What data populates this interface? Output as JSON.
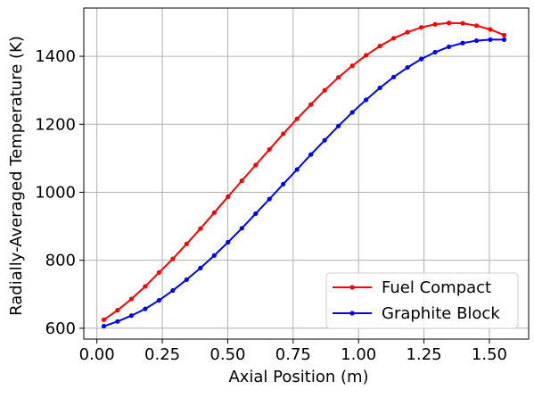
{
  "chart_data": {
    "type": "line",
    "title": "",
    "xlabel": "Axial Position (m)",
    "ylabel": "Radially-Averaged Temperature (K)",
    "xlim": [
      -0.05,
      1.65
    ],
    "ylim": [
      568,
      1542
    ],
    "xticks": [
      0.0,
      0.25,
      0.5,
      0.75,
      1.0,
      1.25,
      1.5
    ],
    "xtick_labels": [
      "0.00",
      "0.25",
      "0.50",
      "0.75",
      "1.00",
      "1.25",
      "1.50"
    ],
    "yticks": [
      600,
      800,
      1000,
      1200,
      1400
    ],
    "ytick_labels": [
      "600",
      "800",
      "1000",
      "1200",
      "1400"
    ],
    "grid": true,
    "legend_position": "lower-right",
    "x": [
      0.0264,
      0.0791,
      0.1319,
      0.1847,
      0.2374,
      0.2902,
      0.3429,
      0.3957,
      0.4484,
      0.5012,
      0.5539,
      0.6067,
      0.6594,
      0.7122,
      0.7649,
      0.8177,
      0.8704,
      0.9232,
      0.9759,
      1.0287,
      1.0814,
      1.1342,
      1.1869,
      1.2397,
      1.2924,
      1.3452,
      1.3979,
      1.4507,
      1.5034,
      1.5562
    ],
    "series": [
      {
        "name": "Fuel Compact",
        "color": "#ff0000",
        "values": [
          625,
          653,
          686,
          723,
          764,
          804,
          848,
          893,
          940,
          987,
          1034,
          1080,
          1126,
          1172,
          1216,
          1258,
          1300,
          1338,
          1372,
          1403,
          1430,
          1453,
          1471,
          1485,
          1494,
          1498,
          1497,
          1490,
          1479,
          1462
        ]
      },
      {
        "name": "Graphite Block",
        "color": "#0000ff",
        "values": [
          606,
          620,
          637,
          657,
          682,
          711,
          743,
          777,
          814,
          853,
          894,
          937,
          980,
          1024,
          1067,
          1111,
          1153,
          1195,
          1235,
          1272,
          1307,
          1339,
          1367,
          1392,
          1412,
          1428,
          1439,
          1446,
          1449,
          1449
        ]
      }
    ]
  }
}
